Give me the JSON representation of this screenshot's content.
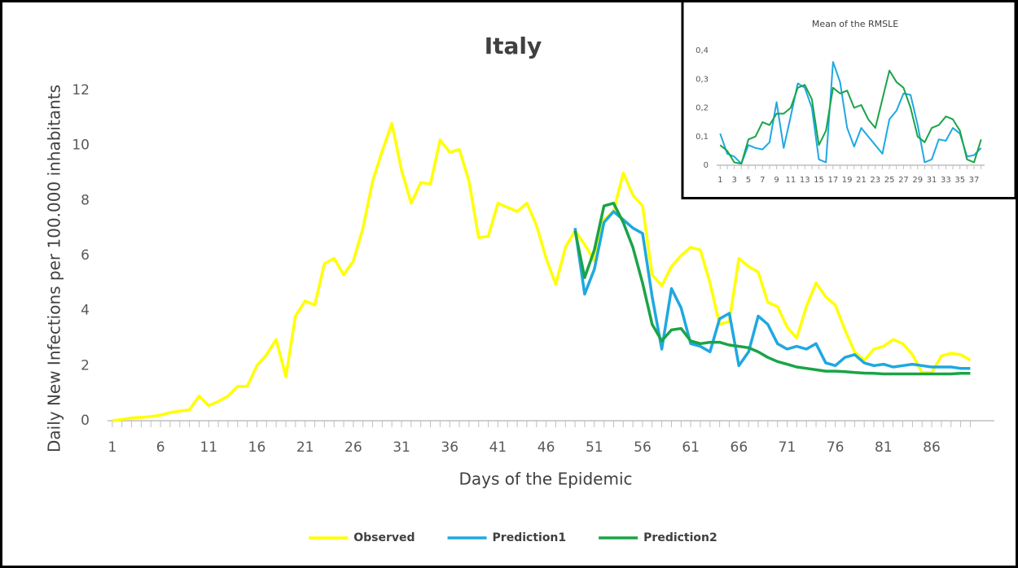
{
  "chart_data": [
    {
      "type": "line",
      "title": "Italy",
      "xlabel": "Days of the Epidemic",
      "ylabel": "Daily New Infections per 100.000 inhabitants",
      "x": [
        1,
        2,
        3,
        4,
        5,
        6,
        7,
        8,
        9,
        10,
        11,
        12,
        13,
        14,
        15,
        16,
        17,
        18,
        19,
        20,
        21,
        22,
        23,
        24,
        25,
        26,
        27,
        28,
        29,
        30,
        31,
        32,
        33,
        34,
        35,
        36,
        37,
        38,
        39,
        40,
        41,
        42,
        43,
        44,
        45,
        46,
        47,
        48,
        49,
        50,
        51,
        52,
        53,
        54,
        55,
        56,
        57,
        58,
        59,
        60,
        61,
        62,
        63,
        64,
        65,
        66,
        67,
        68,
        69,
        70,
        71,
        72,
        73,
        74,
        75,
        76,
        77,
        78,
        79,
        80,
        81,
        82,
        83,
        84,
        85,
        86,
        87,
        88,
        89,
        90
      ],
      "series": [
        {
          "name": "Observed",
          "color": "#ffff00",
          "values": [
            0,
            0.05,
            0.1,
            0.12,
            0.15,
            0.2,
            0.3,
            0.35,
            0.4,
            0.9,
            0.55,
            0.7,
            0.9,
            1.25,
            1.25,
            2,
            2.4,
            2.95,
            1.6,
            3.8,
            4.35,
            4.2,
            5.7,
            5.9,
            5.3,
            5.8,
            7,
            8.7,
            9.8,
            10.8,
            9.1,
            7.9,
            8.65,
            8.6,
            10.2,
            9.75,
            9.85,
            8.7,
            6.65,
            6.7,
            7.9,
            7.75,
            7.6,
            7.9,
            7.1,
            5.9,
            4.95,
            6.3,
            6.9,
            6.4,
            5.8,
            7.3,
            7.6,
            9,
            8.2,
            7.8,
            5.3,
            4.9,
            5.6,
            6,
            6.3,
            6.2,
            5,
            3.5,
            3.6,
            5.9,
            5.6,
            5.4,
            4.3,
            4.15,
            3.4,
            3,
            4.15,
            5,
            4.5,
            4.2,
            3.3,
            2.5,
            2.2,
            2.6,
            2.7,
            2.95,
            2.8,
            2.4,
            1.75,
            1.75,
            2.35,
            2.45,
            2.4,
            2.2
          ]
        },
        {
          "name": "Prediction1",
          "color": "#1fa8e0",
          "values": [
            null,
            null,
            null,
            null,
            null,
            null,
            null,
            null,
            null,
            null,
            null,
            null,
            null,
            null,
            null,
            null,
            null,
            null,
            null,
            null,
            null,
            null,
            null,
            null,
            null,
            null,
            null,
            null,
            null,
            null,
            null,
            null,
            null,
            null,
            null,
            null,
            null,
            null,
            null,
            null,
            null,
            null,
            null,
            null,
            null,
            null,
            null,
            null,
            7,
            4.6,
            5.5,
            7.2,
            7.6,
            7.3,
            7,
            6.8,
            4.5,
            2.6,
            4.8,
            4.1,
            2.8,
            2.7,
            2.5,
            3.7,
            3.9,
            2,
            2.5,
            3.8,
            3.5,
            2.8,
            2.6,
            2.7,
            2.6,
            2.8,
            2.1,
            2,
            2.3,
            2.4,
            2.1,
            2,
            2.05,
            1.95,
            2,
            2.05,
            2,
            1.95,
            1.95,
            1.95,
            1.9,
            1.9
          ]
        },
        {
          "name": "Prediction2",
          "color": "#1aa447",
          "values": [
            null,
            null,
            null,
            null,
            null,
            null,
            null,
            null,
            null,
            null,
            null,
            null,
            null,
            null,
            null,
            null,
            null,
            null,
            null,
            null,
            null,
            null,
            null,
            null,
            null,
            null,
            null,
            null,
            null,
            null,
            null,
            null,
            null,
            null,
            null,
            null,
            null,
            null,
            null,
            null,
            null,
            null,
            null,
            null,
            null,
            null,
            null,
            null,
            6.9,
            5.2,
            6.2,
            7.8,
            7.9,
            7.2,
            6.3,
            5,
            3.5,
            2.9,
            3.3,
            3.35,
            2.9,
            2.8,
            2.85,
            2.85,
            2.75,
            2.7,
            2.65,
            2.5,
            2.3,
            2.15,
            2.05,
            1.95,
            1.9,
            1.85,
            1.8,
            1.8,
            1.78,
            1.75,
            1.73,
            1.72,
            1.7,
            1.7,
            1.7,
            1.7,
            1.7,
            1.7,
            1.7,
            1.7,
            1.72,
            1.72
          ]
        }
      ],
      "xlim": [
        0.5,
        92.5
      ],
      "xticks": [
        1,
        6,
        11,
        16,
        21,
        26,
        31,
        36,
        41,
        46,
        51,
        56,
        61,
        66,
        71,
        76,
        81,
        86
      ],
      "ylim": [
        0,
        12
      ],
      "yticks": [
        0,
        2,
        4,
        6,
        8,
        10,
        12
      ],
      "grid": false,
      "legend": "bottom"
    },
    {
      "type": "line",
      "title": "Mean of the RMSLE",
      "x": [
        1,
        2,
        3,
        4,
        5,
        6,
        7,
        8,
        9,
        10,
        11,
        12,
        13,
        14,
        15,
        16,
        17,
        18,
        19,
        20,
        21,
        22,
        23,
        24,
        25,
        26,
        27,
        28,
        29,
        30,
        31,
        32,
        33,
        34,
        35,
        36,
        37,
        38
      ],
      "series": [
        {
          "color": "#1fa8e0",
          "values": [
            0.11,
            0.04,
            0.03,
            0.005,
            0.07,
            0.06,
            0.055,
            0.08,
            0.22,
            0.06,
            0.17,
            0.285,
            0.27,
            0.2,
            0.02,
            0.01,
            0.36,
            0.29,
            0.13,
            0.065,
            0.13,
            0.1,
            0.07,
            0.04,
            0.16,
            0.19,
            0.25,
            0.245,
            0.14,
            0.01,
            0.02,
            0.09,
            0.085,
            0.13,
            0.11,
            0.03,
            0.035,
            0.06
          ]
        },
        {
          "color": "#1aa447",
          "values": [
            0.07,
            0.05,
            0.01,
            0.005,
            0.09,
            0.1,
            0.15,
            0.14,
            0.18,
            0.18,
            0.2,
            0.27,
            0.28,
            0.23,
            0.07,
            0.12,
            0.27,
            0.25,
            0.26,
            0.2,
            0.21,
            0.16,
            0.13,
            0.23,
            0.33,
            0.29,
            0.27,
            0.2,
            0.1,
            0.08,
            0.13,
            0.14,
            0.17,
            0.16,
            0.12,
            0.02,
            0.01,
            0.09
          ]
        }
      ],
      "xlim": [
        0.5,
        38.5
      ],
      "xticks": [
        1,
        3,
        5,
        7,
        9,
        11,
        13,
        15,
        17,
        19,
        21,
        23,
        25,
        27,
        29,
        31,
        33,
        35,
        37
      ],
      "ylim": [
        0,
        0.4
      ],
      "yticks": [
        0,
        {
          "value": 0.1,
          "label": "0,1"
        },
        {
          "value": 0.2,
          "label": "0,2"
        },
        {
          "value": 0.3,
          "label": "0,3"
        },
        {
          "value": 0.4,
          "label": "0,4"
        }
      ],
      "grid": false
    }
  ]
}
